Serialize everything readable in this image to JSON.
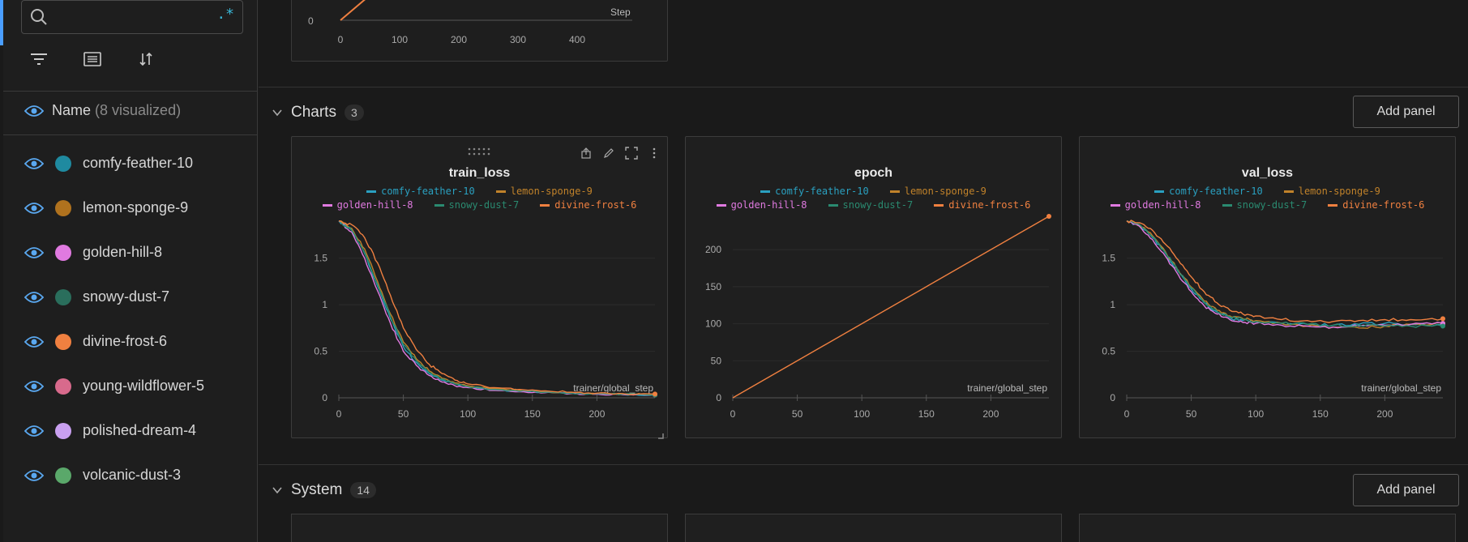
{
  "search": {
    "placeholder": "",
    "regex_label": ".*"
  },
  "sidebar": {
    "header_label": "Name",
    "header_count": "(8 visualized)",
    "runs": [
      {
        "name": "comfy-feather-10",
        "color": "#1f8aa0"
      },
      {
        "name": "lemon-sponge-9",
        "color": "#b0721e"
      },
      {
        "name": "golden-hill-8",
        "color": "#e07ae0"
      },
      {
        "name": "snowy-dust-7",
        "color": "#2a6e5c"
      },
      {
        "name": "divine-frost-6",
        "color": "#f08040"
      },
      {
        "name": "young-wildflower-5",
        "color": "#d86a8c"
      },
      {
        "name": "polished-dream-4",
        "color": "#c9a0f0"
      },
      {
        "name": "volcanic-dust-3",
        "color": "#5aa86a"
      }
    ]
  },
  "top_chart": {
    "x_label": "Step",
    "x_ticks": [
      "0",
      "100",
      "200",
      "300",
      "400"
    ],
    "y_ticks": [
      "0"
    ]
  },
  "sections": {
    "charts": {
      "title": "Charts",
      "count": "3",
      "add_label": "Add panel"
    },
    "system": {
      "title": "System",
      "count": "14",
      "add_label": "Add panel"
    }
  },
  "legend": [
    {
      "name": "comfy-feather-10",
      "color": "#2aa0c0"
    },
    {
      "name": "lemon-sponge-9",
      "color": "#c0822a"
    },
    {
      "name": "golden-hill-8",
      "color": "#e07ae0"
    },
    {
      "name": "snowy-dust-7",
      "color": "#2a8a70"
    },
    {
      "name": "divine-frost-6",
      "color": "#f08040"
    }
  ],
  "chart_data": [
    {
      "type": "line",
      "title": "train_loss",
      "xlabel": "trainer/global_step",
      "ylabel": "",
      "xlim": [
        0,
        245
      ],
      "ylim": [
        0,
        1.95
      ],
      "x_ticks": [
        "0",
        "50",
        "100",
        "150",
        "200"
      ],
      "y_ticks": [
        "0",
        "0.5",
        "1",
        "1.5"
      ],
      "series": [
        {
          "name": "comfy-feather-10",
          "x": [
            0,
            10,
            20,
            30,
            40,
            50,
            60,
            70,
            80,
            90,
            100,
            120,
            140,
            160,
            180,
            200,
            220,
            245
          ],
          "y": [
            1.9,
            1.8,
            1.55,
            1.2,
            0.85,
            0.55,
            0.38,
            0.26,
            0.19,
            0.15,
            0.12,
            0.09,
            0.07,
            0.06,
            0.05,
            0.04,
            0.035,
            0.03
          ]
        },
        {
          "name": "lemon-sponge-9",
          "x": [
            0,
            10,
            20,
            30,
            40,
            50,
            60,
            70,
            80,
            90,
            100,
            120,
            140,
            160,
            180,
            200,
            220,
            245
          ],
          "y": [
            1.9,
            1.82,
            1.6,
            1.25,
            0.9,
            0.6,
            0.42,
            0.29,
            0.21,
            0.16,
            0.13,
            0.1,
            0.08,
            0.065,
            0.055,
            0.045,
            0.04,
            0.035
          ]
        },
        {
          "name": "golden-hill-8",
          "x": [
            0,
            10,
            20,
            30,
            40,
            50,
            60,
            70,
            80,
            90,
            100,
            120,
            140,
            160,
            180,
            200,
            220,
            245
          ],
          "y": [
            1.9,
            1.78,
            1.5,
            1.15,
            0.8,
            0.5,
            0.35,
            0.24,
            0.17,
            0.13,
            0.11,
            0.08,
            0.065,
            0.055,
            0.045,
            0.04,
            0.035,
            0.03
          ]
        },
        {
          "name": "snowy-dust-7",
          "x": [
            0,
            10,
            20,
            30,
            40,
            50,
            60,
            70,
            80,
            90,
            100,
            120,
            140,
            160,
            180,
            200,
            220,
            245
          ],
          "y": [
            1.9,
            1.8,
            1.56,
            1.22,
            0.87,
            0.57,
            0.4,
            0.27,
            0.2,
            0.15,
            0.12,
            0.09,
            0.07,
            0.06,
            0.05,
            0.045,
            0.04,
            0.03
          ]
        },
        {
          "name": "divine-frost-6",
          "x": [
            0,
            10,
            20,
            30,
            40,
            50,
            60,
            70,
            80,
            90,
            100,
            120,
            140,
            160,
            180,
            200,
            220,
            245
          ],
          "y": [
            1.9,
            1.86,
            1.72,
            1.45,
            1.1,
            0.75,
            0.52,
            0.36,
            0.26,
            0.19,
            0.15,
            0.11,
            0.09,
            0.075,
            0.06,
            0.05,
            0.045,
            0.04
          ]
        }
      ]
    },
    {
      "type": "line",
      "title": "epoch",
      "xlabel": "trainer/global_step",
      "ylabel": "",
      "xlim": [
        0,
        245
      ],
      "ylim": [
        0,
        245
      ],
      "x_ticks": [
        "0",
        "50",
        "100",
        "150",
        "200"
      ],
      "y_ticks": [
        "0",
        "50",
        "100",
        "150",
        "200"
      ],
      "series": [
        {
          "name": "divine-frost-6",
          "x": [
            0,
            245
          ],
          "y": [
            0,
            245
          ]
        }
      ]
    },
    {
      "type": "line",
      "title": "val_loss",
      "xlabel": "trainer/global_step",
      "ylabel": "",
      "xlim": [
        0,
        245
      ],
      "ylim": [
        0,
        1.95
      ],
      "x_ticks": [
        "0",
        "50",
        "100",
        "150",
        "200"
      ],
      "y_ticks": [
        "0",
        "0.5",
        "1",
        "1.5"
      ],
      "series": [
        {
          "name": "comfy-feather-10",
          "x": [
            0,
            10,
            20,
            30,
            40,
            50,
            60,
            70,
            80,
            90,
            100,
            120,
            140,
            160,
            180,
            200,
            220,
            245
          ],
          "y": [
            1.9,
            1.85,
            1.72,
            1.55,
            1.35,
            1.17,
            1.02,
            0.92,
            0.86,
            0.83,
            0.82,
            0.8,
            0.79,
            0.78,
            0.79,
            0.8,
            0.79,
            0.78
          ]
        },
        {
          "name": "lemon-sponge-9",
          "x": [
            0,
            10,
            20,
            30,
            40,
            50,
            60,
            70,
            80,
            90,
            100,
            120,
            140,
            160,
            180,
            200,
            220,
            245
          ],
          "y": [
            1.9,
            1.86,
            1.74,
            1.57,
            1.37,
            1.19,
            1.04,
            0.94,
            0.88,
            0.85,
            0.83,
            0.8,
            0.77,
            0.76,
            0.75,
            0.77,
            0.79,
            0.8
          ]
        },
        {
          "name": "golden-hill-8",
          "x": [
            0,
            10,
            20,
            30,
            40,
            50,
            60,
            70,
            80,
            90,
            100,
            120,
            140,
            160,
            180,
            200,
            220,
            245
          ],
          "y": [
            1.9,
            1.84,
            1.7,
            1.52,
            1.32,
            1.14,
            0.99,
            0.9,
            0.84,
            0.81,
            0.8,
            0.78,
            0.77,
            0.76,
            0.77,
            0.78,
            0.79,
            0.8
          ]
        },
        {
          "name": "snowy-dust-7",
          "x": [
            0,
            10,
            20,
            30,
            40,
            50,
            60,
            70,
            80,
            90,
            100,
            120,
            140,
            160,
            180,
            200,
            220,
            245
          ],
          "y": [
            1.9,
            1.86,
            1.73,
            1.56,
            1.36,
            1.18,
            1.03,
            0.93,
            0.87,
            0.84,
            0.82,
            0.8,
            0.79,
            0.78,
            0.78,
            0.77,
            0.77,
            0.77
          ]
        },
        {
          "name": "divine-frost-6",
          "x": [
            0,
            10,
            20,
            30,
            40,
            50,
            60,
            70,
            80,
            90,
            100,
            120,
            140,
            160,
            180,
            200,
            220,
            245
          ],
          "y": [
            1.9,
            1.88,
            1.8,
            1.65,
            1.48,
            1.3,
            1.14,
            1.02,
            0.94,
            0.9,
            0.88,
            0.84,
            0.83,
            0.82,
            0.83,
            0.84,
            0.84,
            0.85
          ]
        }
      ]
    }
  ]
}
